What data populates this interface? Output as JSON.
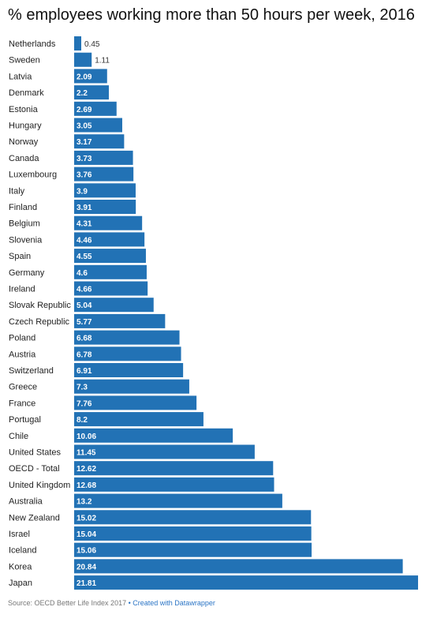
{
  "chart_data": {
    "type": "bar",
    "orientation": "horizontal",
    "title": "% employees working more than 50 hours per week, 2016",
    "categories": [
      "Netherlands",
      "Sweden",
      "Latvia",
      "Denmark",
      "Estonia",
      "Hungary",
      "Norway",
      "Canada",
      "Luxembourg",
      "Italy",
      "Finland",
      "Belgium",
      "Slovenia",
      "Spain",
      "Germany",
      "Ireland",
      "Slovak Republic",
      "Czech Republic",
      "Poland",
      "Austria",
      "Switzerland",
      "Greece",
      "France",
      "Portugal",
      "Chile",
      "United States",
      "OECD - Total",
      "United Kingdom",
      "Australia",
      "New Zealand",
      "Israel",
      "Iceland",
      "Korea",
      "Japan"
    ],
    "values": [
      0.45,
      1.11,
      2.09,
      2.2,
      2.69,
      3.05,
      3.17,
      3.73,
      3.76,
      3.9,
      3.91,
      4.31,
      4.46,
      4.55,
      4.6,
      4.66,
      5.04,
      5.77,
      6.68,
      6.78,
      6.91,
      7.3,
      7.76,
      8.2,
      10.06,
      11.45,
      12.62,
      12.68,
      13.2,
      15.02,
      15.04,
      15.06,
      20.84,
      21.81
    ],
    "value_labels": [
      "0.45",
      "1.11",
      "2.09",
      "2.2",
      "2.69",
      "3.05",
      "3.17",
      "3.73",
      "3.76",
      "3.9",
      "3.91",
      "4.31",
      "4.46",
      "4.55",
      "4.6",
      "4.66",
      "5.04",
      "5.77",
      "6.68",
      "6.78",
      "6.91",
      "7.3",
      "7.76",
      "8.2",
      "10.06",
      "11.45",
      "12.62",
      "12.68",
      "13.2",
      "15.02",
      "15.04",
      "15.06",
      "20.84",
      "21.81"
    ],
    "xlim": [
      0,
      21.81
    ],
    "bar_color": "#2272b5",
    "grid": false,
    "legend": "none"
  },
  "footer": {
    "source": "Source: OECD Better Life Index 2017",
    "separator": "•",
    "credit": "Created with Datawrapper"
  }
}
